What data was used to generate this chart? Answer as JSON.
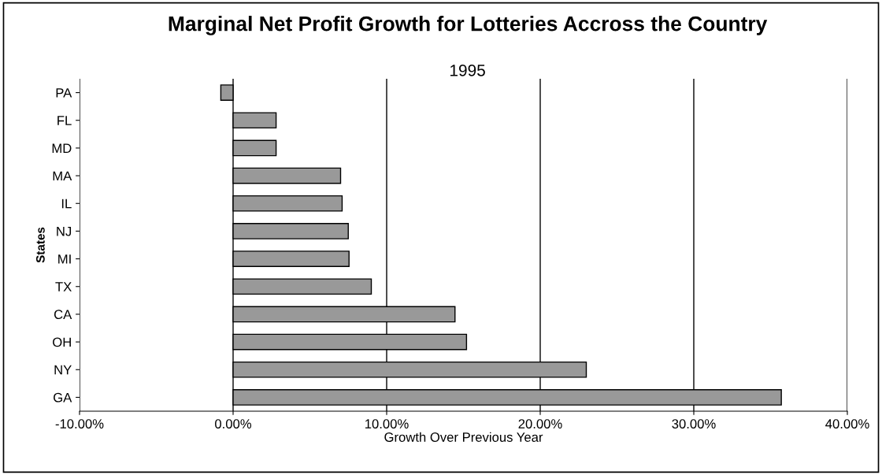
{
  "chart_data": {
    "type": "bar",
    "orientation": "horizontal",
    "title": "Marginal Net Profit Growth for Lotteries Accross the Country",
    "subtitle": "1995",
    "xlabel": "Growth Over Previous Year",
    "ylabel": "States",
    "categories": [
      "PA",
      "FL",
      "MD",
      "MA",
      "IL",
      "NJ",
      "MI",
      "TX",
      "CA",
      "OH",
      "NY",
      "GA"
    ],
    "values": [
      -0.8,
      2.8,
      2.8,
      7.0,
      7.1,
      7.5,
      7.55,
      9.0,
      14.45,
      15.2,
      23.0,
      35.7
    ],
    "color": "#999999",
    "xlim": [
      -10,
      40
    ],
    "xticks": [
      {
        "value": -10,
        "label": "-10.00%"
      },
      {
        "value": 0,
        "label": "0.00%"
      },
      {
        "value": 10,
        "label": "10.00%"
      },
      {
        "value": 20,
        "label": "20.00%"
      },
      {
        "value": 30,
        "label": "30.00%"
      },
      {
        "value": 40,
        "label": "40.00%"
      }
    ],
    "grid": "x",
    "legend": false
  }
}
